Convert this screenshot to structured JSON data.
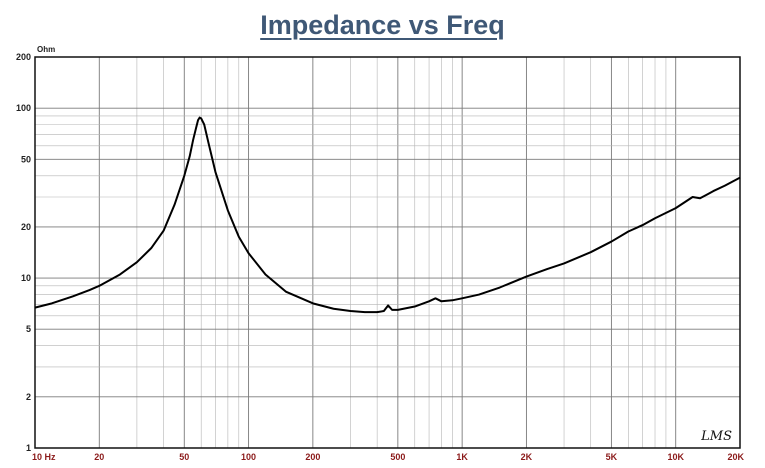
{
  "chart_data": {
    "type": "line",
    "title": "Impedance vs Freq",
    "ylabel": "Ohm",
    "xscale": "log",
    "yscale": "log",
    "xlim": [
      10,
      20000
    ],
    "ylim": [
      1,
      200
    ],
    "grid": true,
    "xticks": [
      {
        "v": 10,
        "label": "10  Hz"
      },
      {
        "v": 20,
        "label": "20"
      },
      {
        "v": 50,
        "label": "50"
      },
      {
        "v": 100,
        "label": "100"
      },
      {
        "v": 200,
        "label": "200"
      },
      {
        "v": 500,
        "label": "500"
      },
      {
        "v": 1000,
        "label": "1K"
      },
      {
        "v": 2000,
        "label": "2K"
      },
      {
        "v": 5000,
        "label": "5K"
      },
      {
        "v": 10000,
        "label": "10K"
      },
      {
        "v": 20000,
        "label": "20K"
      }
    ],
    "yticks": [
      {
        "v": 1,
        "label": "1"
      },
      {
        "v": 2,
        "label": "2"
      },
      {
        "v": 5,
        "label": "5"
      },
      {
        "v": 10,
        "label": "10"
      },
      {
        "v": 20,
        "label": "20"
      },
      {
        "v": 50,
        "label": "50"
      },
      {
        "v": 100,
        "label": "100"
      },
      {
        "v": 200,
        "label": "200"
      }
    ],
    "series": [
      {
        "x": [
          10,
          12,
          15,
          18,
          20,
          25,
          30,
          35,
          40,
          45,
          50,
          53,
          55,
          57,
          58,
          59,
          60,
          62,
          65,
          70,
          80,
          90,
          100,
          120,
          150,
          200,
          250,
          300,
          350,
          400,
          430,
          450,
          470,
          500,
          600,
          700,
          750,
          800,
          900,
          1000,
          1200,
          1500,
          2000,
          2500,
          3000,
          4000,
          5000,
          6000,
          7000,
          8000,
          10000,
          12000,
          13000,
          14000,
          15000,
          17000,
          20000
        ],
        "y": [
          6.7,
          7.1,
          7.8,
          8.5,
          9.0,
          10.5,
          12.4,
          15.0,
          19.0,
          27.0,
          40.0,
          52.0,
          65.0,
          78.0,
          85.0,
          88.0,
          87.0,
          80.0,
          62.0,
          42.0,
          25.0,
          17.5,
          14.0,
          10.5,
          8.3,
          7.1,
          6.6,
          6.4,
          6.3,
          6.3,
          6.4,
          6.9,
          6.5,
          6.5,
          6.8,
          7.3,
          7.6,
          7.3,
          7.4,
          7.6,
          8.0,
          8.8,
          10.2,
          11.3,
          12.2,
          14.2,
          16.4,
          18.8,
          20.5,
          22.5,
          25.8,
          30.0,
          29.5,
          31.0,
          32.5,
          35.0,
          39.0
        ]
      }
    ],
    "watermark": "LMS"
  }
}
